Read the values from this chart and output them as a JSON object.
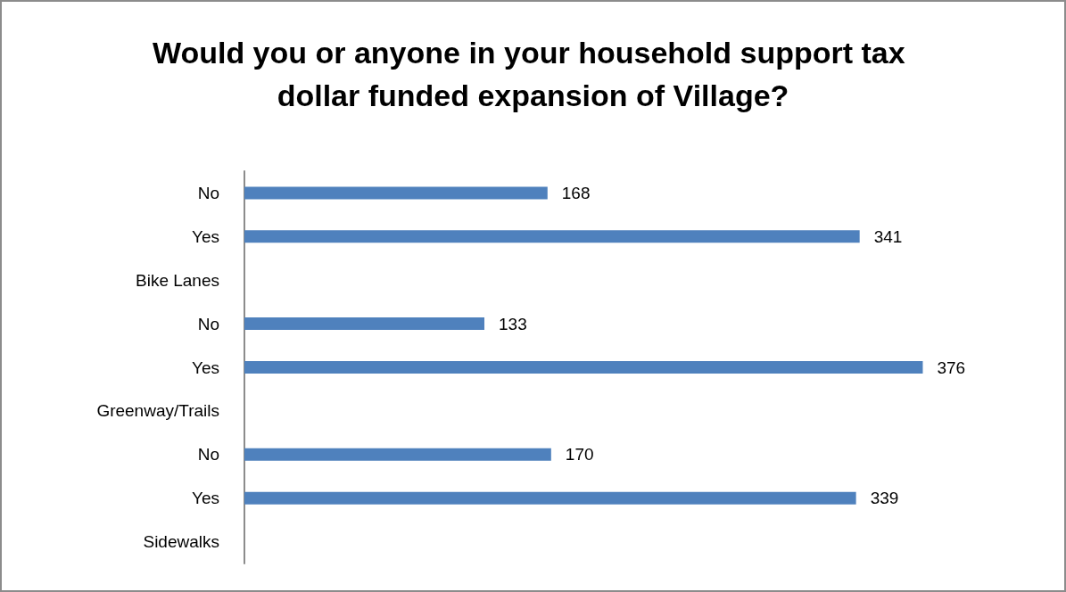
{
  "chart_data": {
    "type": "bar",
    "orientation": "horizontal",
    "title": "Would you or anyone in your household support tax dollar funded expansion of Village?",
    "categories": [
      "No",
      "Yes",
      "Bike Lanes",
      "No",
      "Yes",
      "Greenway/Trails",
      "No",
      "Yes",
      "Sidewalks"
    ],
    "values": [
      168,
      341,
      null,
      133,
      376,
      null,
      170,
      339,
      null
    ],
    "color": "#4f81bd",
    "data_labels": true,
    "grid": false
  }
}
